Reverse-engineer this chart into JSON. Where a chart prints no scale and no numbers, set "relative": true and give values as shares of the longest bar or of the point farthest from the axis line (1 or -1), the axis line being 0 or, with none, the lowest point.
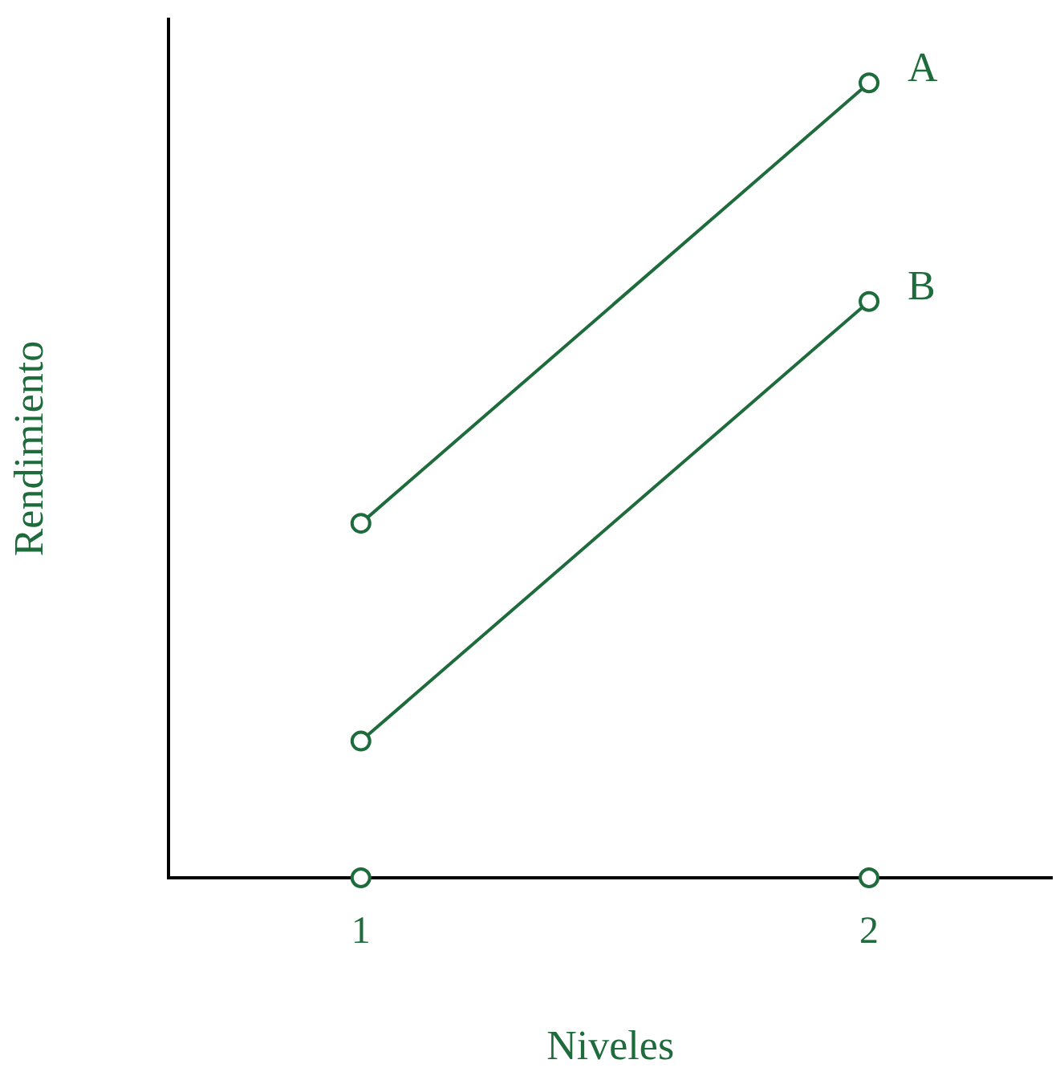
{
  "chart_data": {
    "type": "line",
    "xlabel": "Niveles",
    "ylabel": "Rendimiento",
    "categories": [
      "1",
      "2"
    ],
    "relative": true,
    "legend": false,
    "grid": false,
    "marker": "circle",
    "series": [
      {
        "name": "A",
        "color": "#1e6b3c",
        "values": [
          0.446,
          1
        ]
      },
      {
        "name": "B",
        "color": "#1e6b3c",
        "values": [
          0.172,
          0.725
        ]
      },
      {
        "type": "scatter",
        "color": "#1e6b3c",
        "values": [
          0,
          0
        ]
      }
    ]
  }
}
